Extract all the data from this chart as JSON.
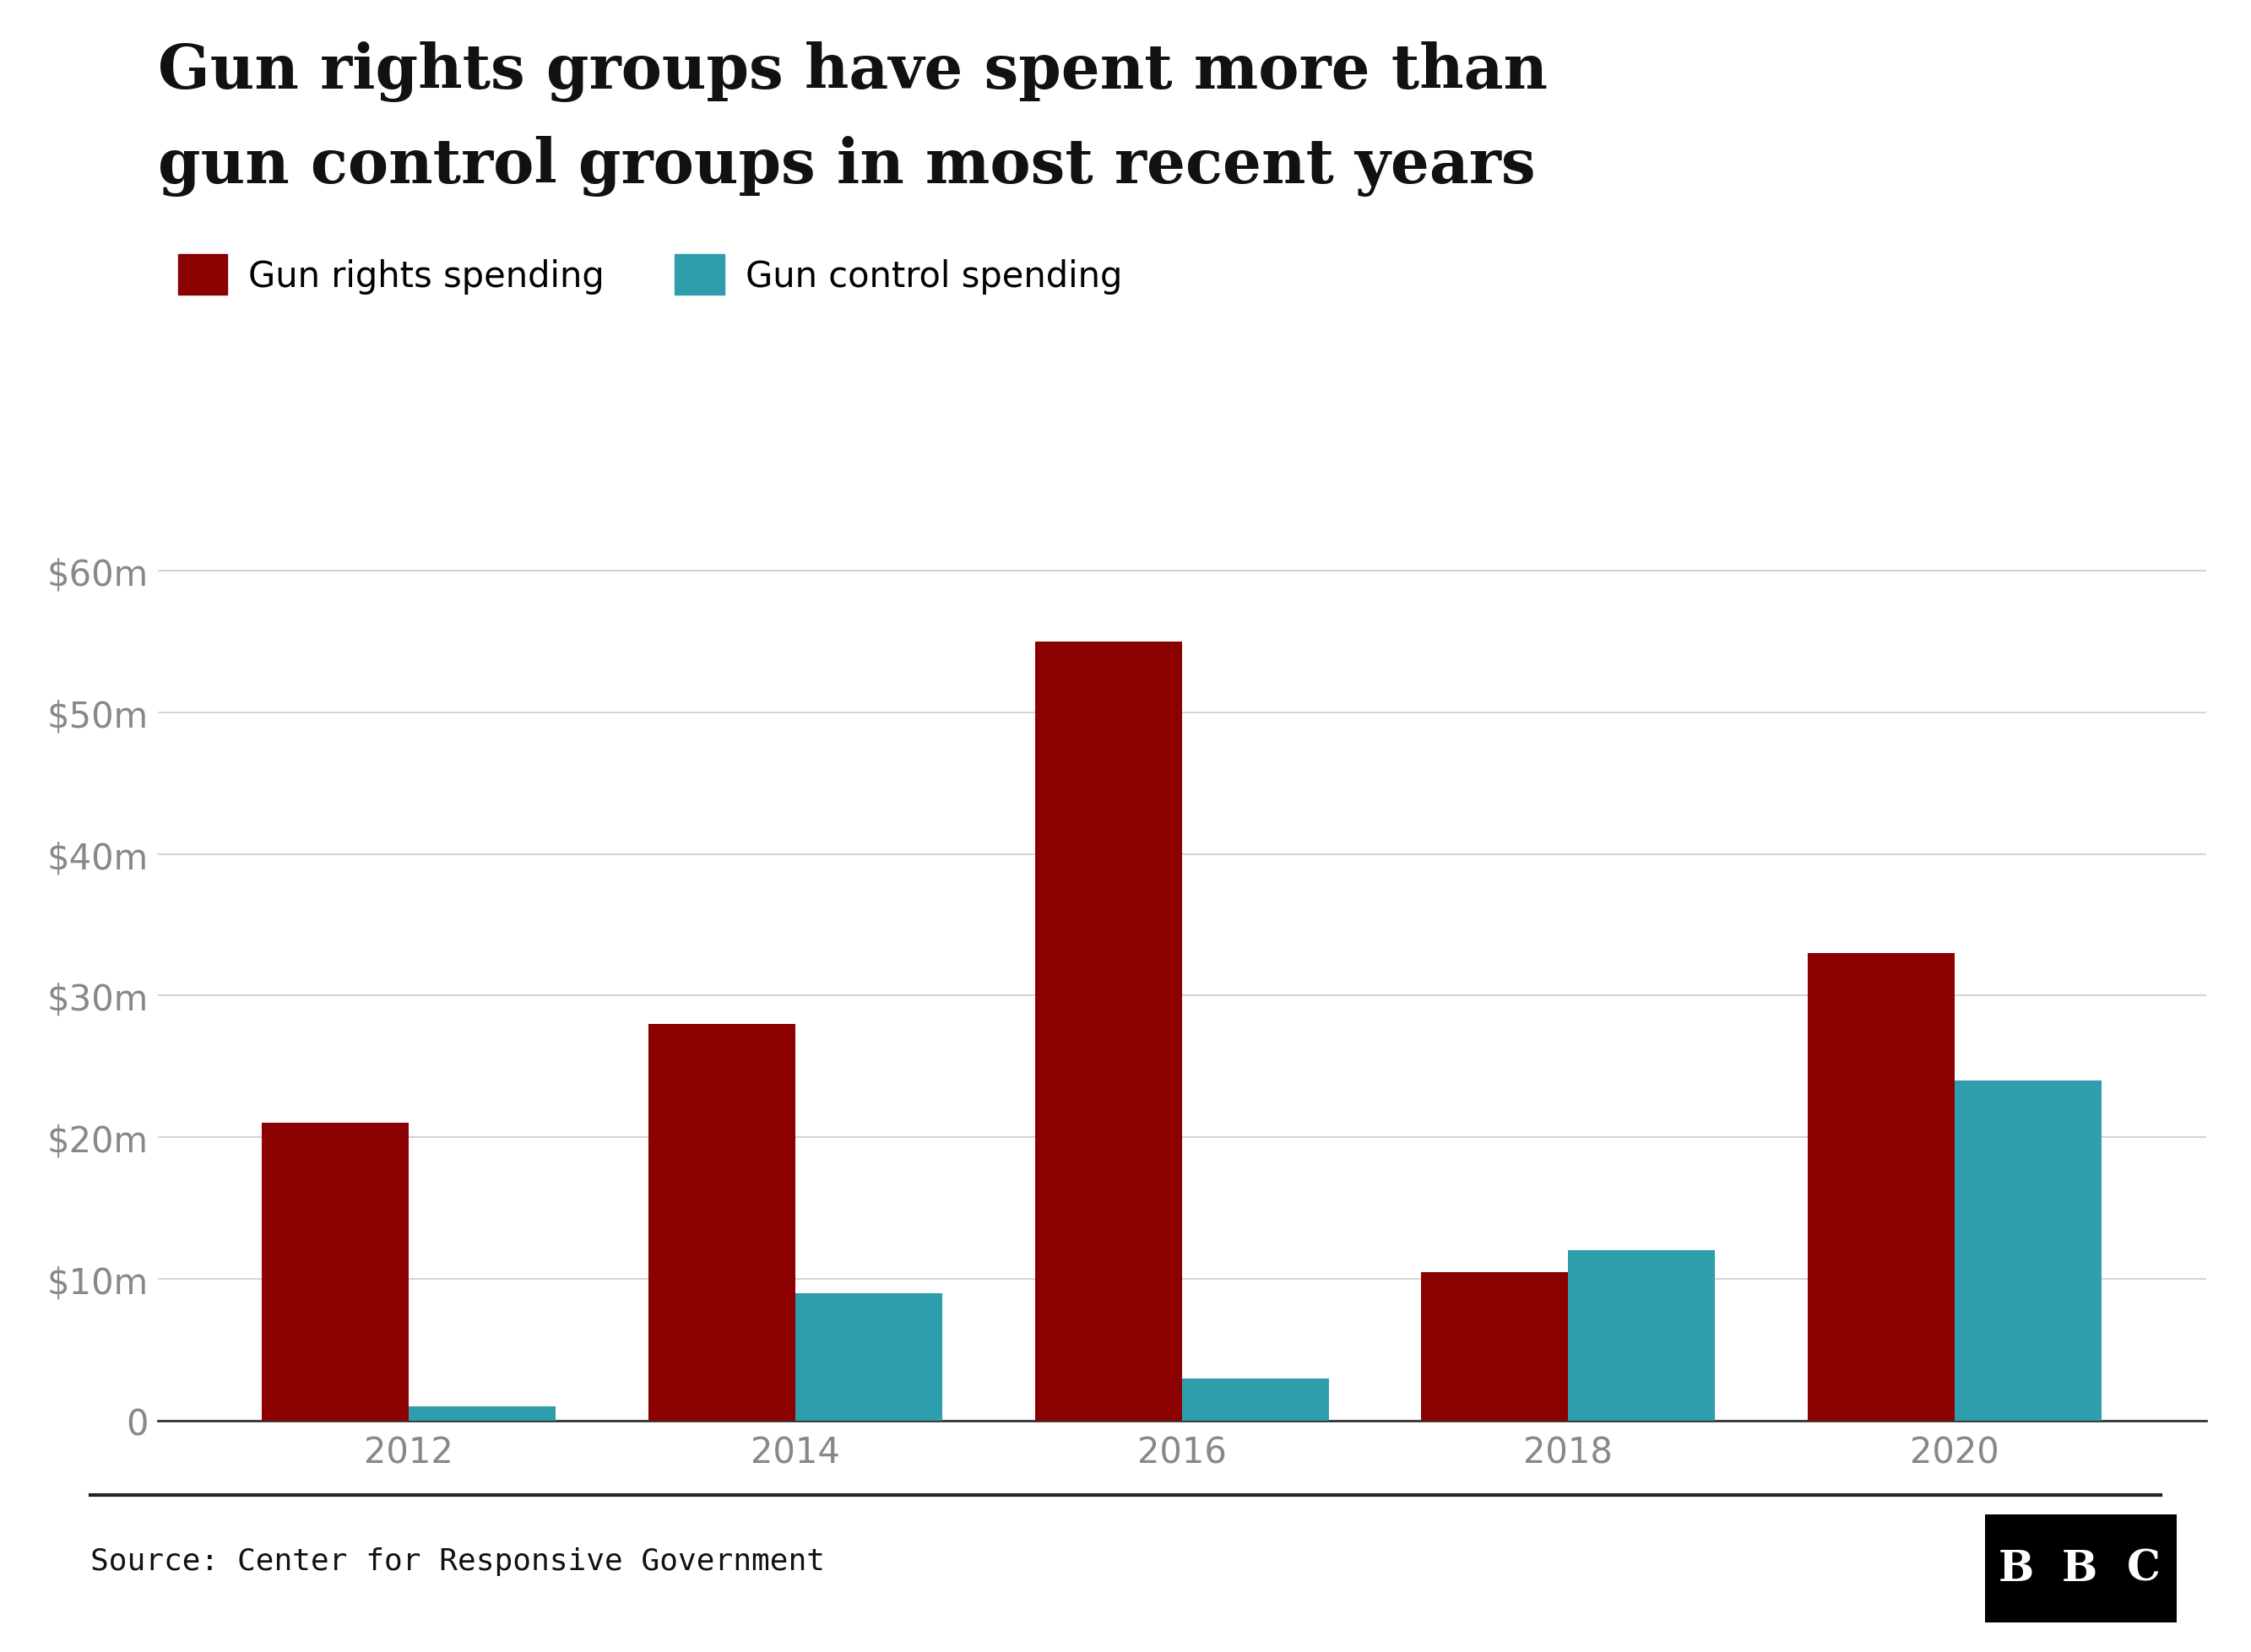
{
  "title_line1": "Gun rights groups have spent more than",
  "title_line2": "gun control groups in most recent years",
  "years": [
    2012,
    2014,
    2016,
    2018,
    2020
  ],
  "gun_rights": [
    21,
    28,
    55,
    10.5,
    33
  ],
  "gun_control": [
    1,
    9,
    3,
    12,
    24
  ],
  "gun_rights_color": "#8B0000",
  "gun_control_color": "#2E9EAD",
  "legend_rights": "Gun rights spending",
  "legend_control": "Gun control spending",
  "source": "Source: Center for Responsive Government",
  "ylim": [
    0,
    63
  ],
  "yticks": [
    0,
    10,
    20,
    30,
    40,
    50,
    60
  ],
  "ytick_labels": [
    "0",
    "$10m",
    "$20m",
    "$30m",
    "$40m",
    "$50m",
    "$60m"
  ],
  "background_color": "#ffffff",
  "grid_color": "#cccccc",
  "bar_width": 0.38,
  "title_fontsize": 52,
  "legend_fontsize": 30,
  "tick_fontsize": 30,
  "source_fontsize": 26
}
